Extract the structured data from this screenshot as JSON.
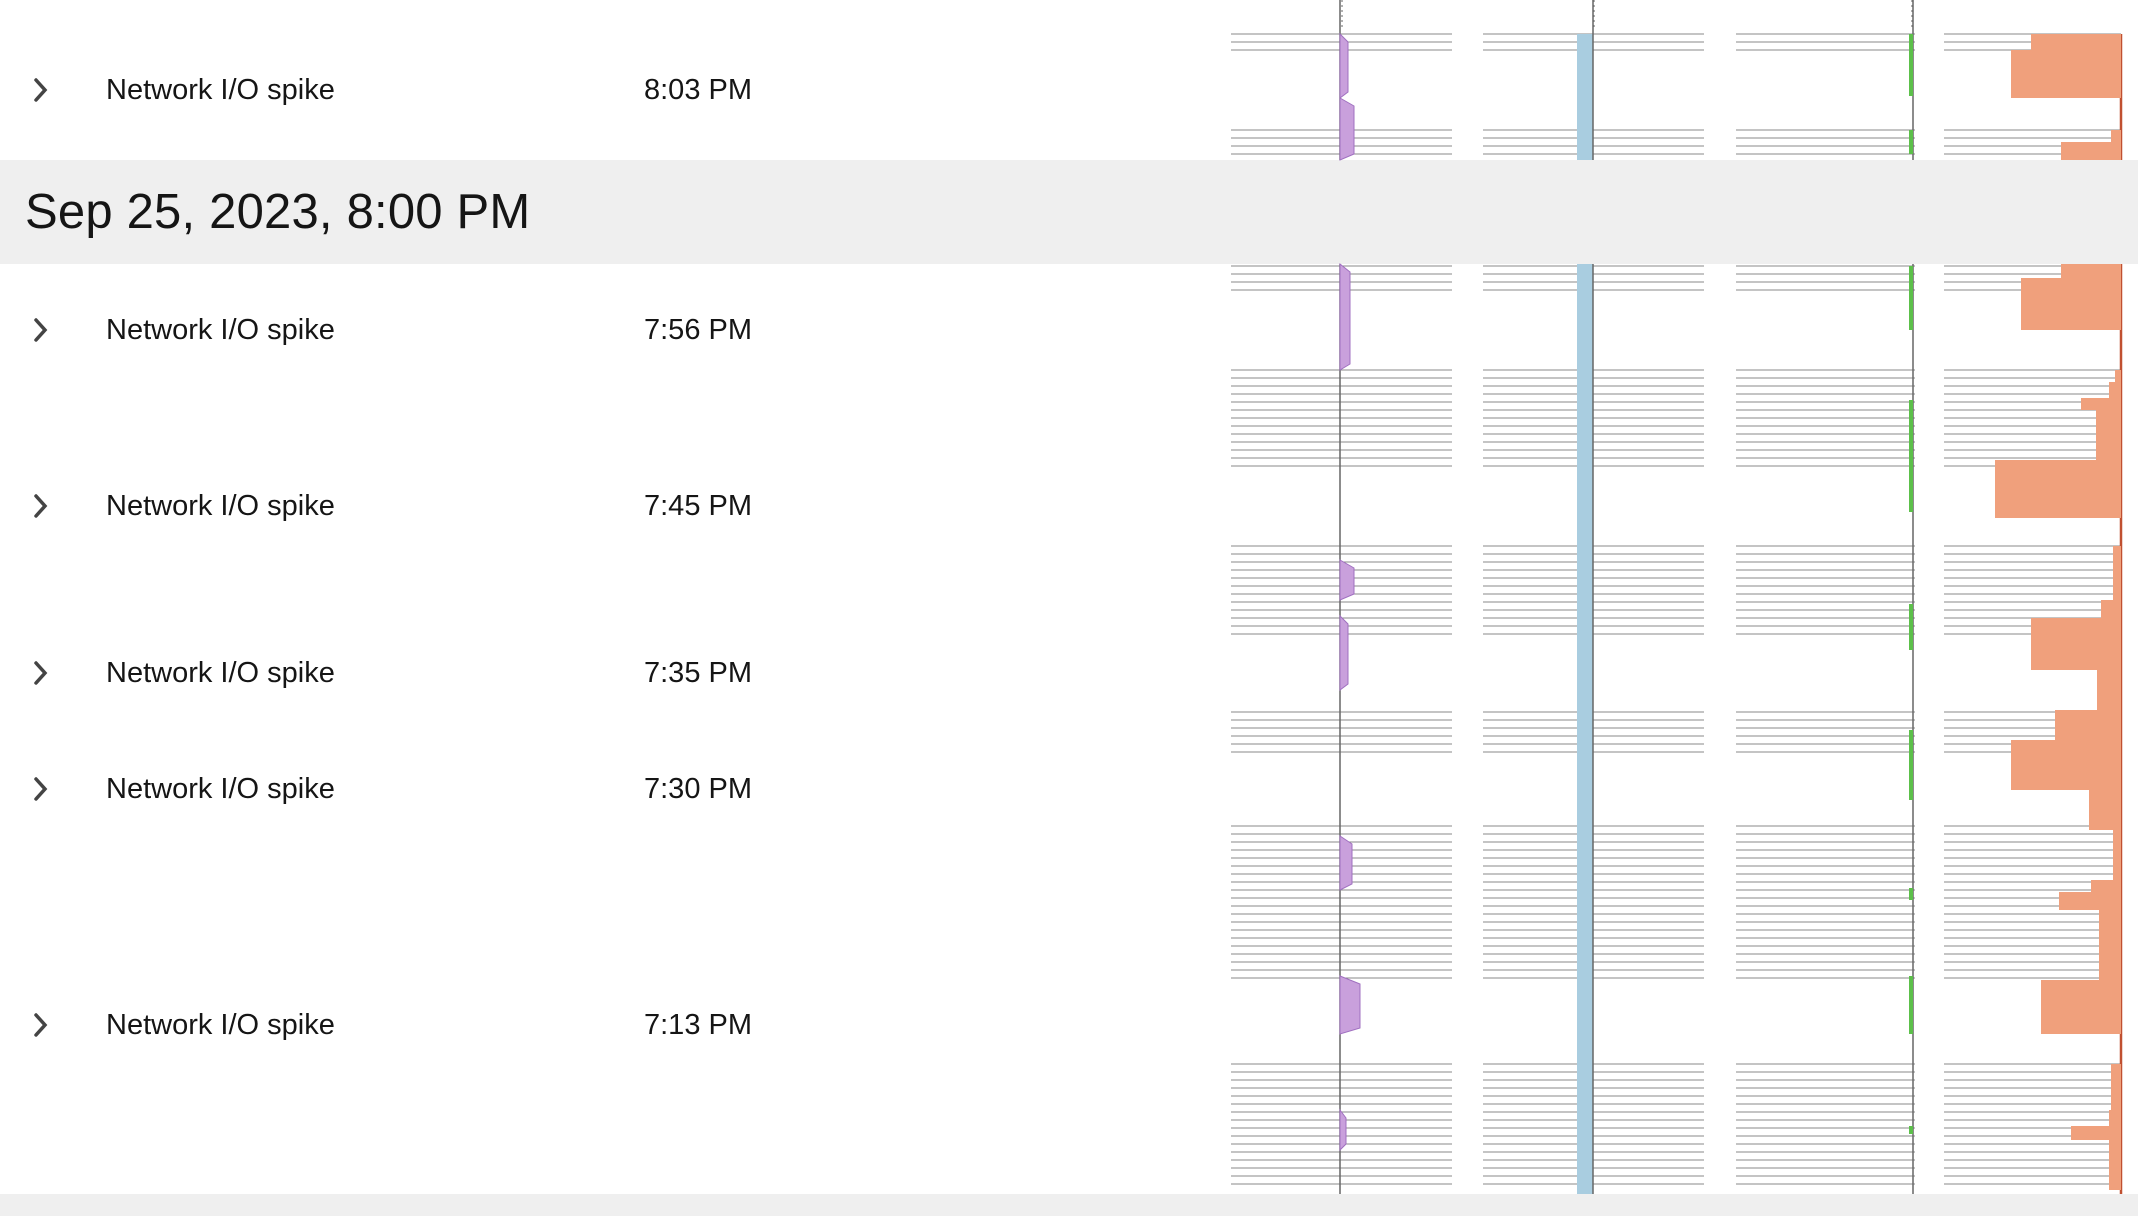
{
  "group": {
    "title": "Sep 25, 2023, 8:00 PM"
  },
  "rows": [
    {
      "name": "Network I/O spike",
      "time": "8:03 PM"
    },
    {
      "name": "Network I/O spike",
      "time": "7:56 PM"
    },
    {
      "name": "Network I/O spike",
      "time": "7:45 PM"
    },
    {
      "name": "Network I/O spike",
      "time": "7:35 PM"
    },
    {
      "name": "Network I/O spike",
      "time": "7:30 PM"
    },
    {
      "name": "Network I/O spike",
      "time": "7:13 PM"
    }
  ],
  "icons": {
    "row_toggle": "chevron-right-icon"
  },
  "colors": {
    "track1": "#c9a0dc",
    "track1_edge": "#a070c0",
    "track2": "#a9cde0",
    "track3": "#5cc04a",
    "track4": "#f0a07c",
    "track4_edge": "#c05030",
    "header_bg": "#efefef",
    "line": "#666666"
  }
}
